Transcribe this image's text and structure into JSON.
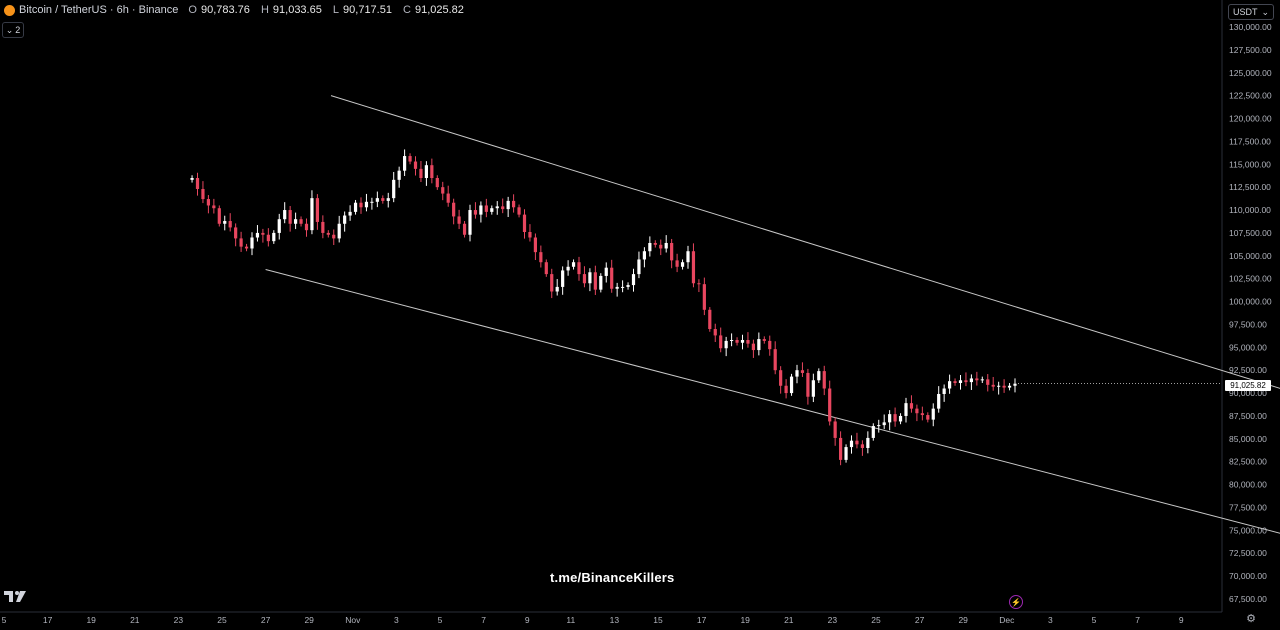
{
  "header": {
    "title": "Bitcoin / TetherUS · 6h · Binance",
    "ohlc": [
      {
        "k": "O",
        "v": "90,783.76"
      },
      {
        "k": "H",
        "v": "91,033.65"
      },
      {
        "k": "L",
        "v": "90,717.51"
      },
      {
        "k": "C",
        "v": "91,025.82"
      }
    ]
  },
  "indicator_toggle": {
    "count": "2"
  },
  "currency": {
    "label": "USDT"
  },
  "last_price_label": "91,025.82",
  "watermark": "t.me/BinanceKillers",
  "colors": {
    "up": "#ffffff",
    "down": "#e8465f",
    "channel": "#c8c8c8",
    "background": "#000000"
  },
  "icons": [
    "bitcoin-icon",
    "chevron-down-icon",
    "tradingview-logo-icon",
    "flash-icon",
    "gear-icon"
  ],
  "chart_data": {
    "type": "candlestick",
    "title": "Bitcoin / TetherUS · 6h · Binance",
    "interval": "6h",
    "ylim": [
      67500,
      130000
    ],
    "y_ticks": [
      "67,500.00",
      "70,000.00",
      "72,500.00",
      "75,000.00",
      "77,500.00",
      "80,000.00",
      "82,500.00",
      "85,000.00",
      "87,500.00",
      "90,000.00",
      "92,500.00",
      "95,000.00",
      "97,500.00",
      "100,000.00",
      "102,500.00",
      "105,000.00",
      "107,500.00",
      "110,000.00",
      "112,500.00",
      "115,000.00",
      "117,500.00",
      "120,000.00",
      "122,500.00",
      "125,000.00",
      "127,500.00",
      "130,000.00"
    ],
    "x_ticks": [
      "5",
      "17",
      "19",
      "21",
      "23",
      "25",
      "27",
      "29",
      "Nov",
      "3",
      "5",
      "7",
      "9",
      "11",
      "13",
      "15",
      "17",
      "19",
      "21",
      "23",
      "25",
      "27",
      "29",
      "Dec",
      "3",
      "5",
      "7",
      "9"
    ],
    "closes": [
      113500,
      112300,
      111200,
      110500,
      110200,
      108500,
      108800,
      108100,
      106900,
      106000,
      105800,
      107000,
      107500,
      107300,
      106600,
      107500,
      109000,
      110000,
      108500,
      109000,
      108500,
      107800,
      111300,
      108700,
      107500,
      107300,
      106900,
      108500,
      109400,
      109800,
      110800,
      110300,
      110900,
      110900,
      111300,
      111000,
      111300,
      113300,
      114300,
      115900,
      115300,
      114500,
      113500,
      114900,
      113500,
      112500,
      111800,
      110800,
      109300,
      108500,
      107300,
      110000,
      109500,
      110500,
      109800,
      110200,
      110400,
      110100,
      111000,
      110300,
      109500,
      107600,
      107000,
      105400,
      104300,
      103000,
      101100,
      101600,
      103400,
      103800,
      104300,
      103000,
      102000,
      103200,
      101300,
      102800,
      103700,
      101400,
      101600,
      101600,
      101800,
      103000,
      104600,
      105500,
      106400,
      106200,
      105800,
      106400,
      104500,
      103800,
      104300,
      105500,
      102000,
      101900,
      99100,
      97000,
      96300,
      94900,
      95700,
      95800,
      95500,
      95800,
      95400,
      94700,
      95900,
      95700,
      94800,
      92500,
      90800,
      90000,
      91800,
      92500,
      92200,
      89600,
      91400,
      92400,
      90500,
      86900,
      85100,
      82700,
      84100,
      84800,
      84400,
      84000,
      85100,
      86400,
      86500,
      86800,
      87700,
      86900,
      87500,
      88900,
      88300,
      87800,
      87600,
      87100,
      88300,
      89900,
      90500,
      91300,
      91100,
      91400,
      91200,
      91600,
      91400,
      91500,
      90900,
      90700,
      90800,
      90600,
      90800,
      91025.82
    ],
    "channel": {
      "upper": [
        {
          "x": "Oct 20",
          "y": 122500
        },
        {
          "x": "Dec 8",
          "y": 86500
        }
      ],
      "lower": [
        {
          "x": "Oct 17",
          "y": 103500
        },
        {
          "x": "Dec 8",
          "y": 71300
        }
      ]
    },
    "last_price": 91025.82
  }
}
